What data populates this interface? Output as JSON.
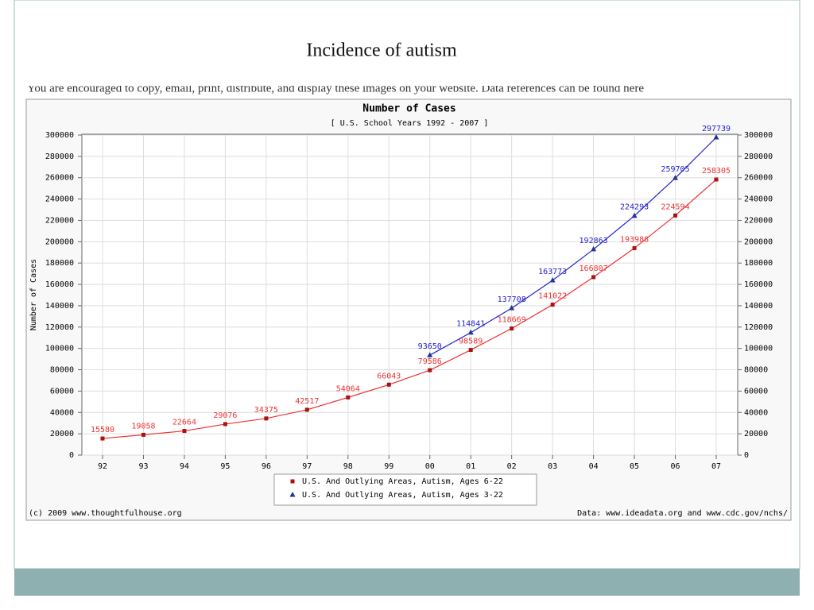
{
  "slide_title": "Incidence of autism",
  "cut_text": "You are encouraged to copy, email, print, distribute, and display these images on your website. Data references can be found here",
  "chart_data": {
    "type": "line",
    "title": "Number of Cases",
    "subtitle": "[ U.S. School Years 1992 - 2007 ]",
    "y_label": "Number of Cases",
    "footer_left": "(c) 2009 www.thoughtfulhouse.org",
    "footer_right": "Data: www.ideadata.org and www.cdc.gov/nchs/",
    "categories": [
      "92",
      "93",
      "94",
      "95",
      "96",
      "97",
      "98",
      "99",
      "00",
      "01",
      "02",
      "03",
      "04",
      "05",
      "06",
      "07"
    ],
    "series": [
      {
        "name": "U.S. And Outlying Areas, Autism, Ages 6-22",
        "color": "#ee3333",
        "marker": "square",
        "values": [
          15580,
          19058,
          22664,
          29076,
          34375,
          42517,
          54064,
          66043,
          79586,
          98589,
          118669,
          141022,
          166807,
          193988,
          224594,
          258305
        ]
      },
      {
        "name": "U.S. And Outlying Areas, Autism, Ages 3-22",
        "color": "#2222cc",
        "marker": "triangle",
        "values": [
          null,
          null,
          null,
          null,
          null,
          null,
          null,
          null,
          93650,
          114841,
          137708,
          163773,
          192863,
          224293,
          259705,
          297739
        ]
      }
    ],
    "ylim": [
      0,
      300000
    ],
    "yticks": [
      0,
      20000,
      40000,
      60000,
      80000,
      100000,
      120000,
      140000,
      160000,
      180000,
      200000,
      220000,
      240000,
      260000,
      280000,
      300000
    ],
    "y2lim": [
      0,
      300000
    ],
    "y2ticks": [
      0,
      20000,
      40000,
      60000,
      80000,
      100000,
      120000,
      140000,
      160000,
      180000,
      200000,
      220000,
      240000,
      260000,
      280000,
      300000
    ],
    "grid": true,
    "legend": "bottom"
  }
}
